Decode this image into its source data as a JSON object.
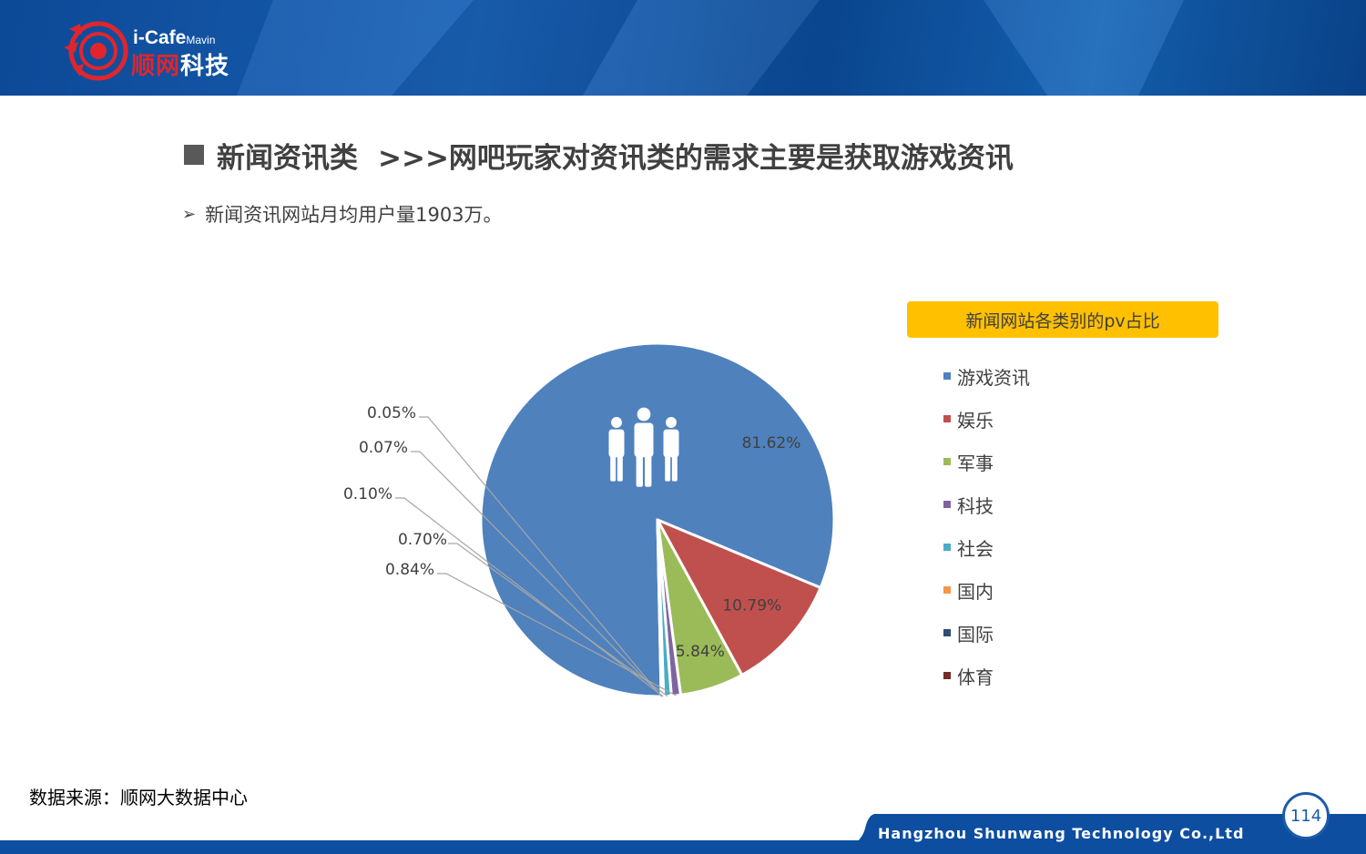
{
  "header": {
    "brand_en": "i-Cafe",
    "brand_sub": "Mavin",
    "brand_cn_red": "顺网",
    "brand_cn_white": "科技"
  },
  "slide": {
    "title_prefix": "新闻资讯类",
    "title_main": ">>>网吧玩家对资讯类的需求主要是获取游戏资讯",
    "bullet_arrow": "➢",
    "bullet": "新闻资讯网站月均用户量1903万。",
    "source": "数据来源：顺网大数据中心",
    "page_number": "114"
  },
  "footer": {
    "company": "Hangzhou Shunwang Technology Co.,Ltd"
  },
  "colors": {
    "header_blue": "#0d4ea0",
    "legend_title_bg": "#ffc000",
    "text_gray": "#404040",
    "logo_red": "#e0262c"
  },
  "chart_data": {
    "type": "pie",
    "title": "新闻网站各类别的pv占比",
    "legend_position": "right",
    "center_icon": "people-group-icon",
    "categories": [
      "游戏资讯",
      "娱乐",
      "军事",
      "科技",
      "社会",
      "国内",
      "国际",
      "体育"
    ],
    "values": [
      81.62,
      10.79,
      5.84,
      0.84,
      0.7,
      0.1,
      0.07,
      0.05
    ],
    "labels": [
      "81.62%",
      "10.79%",
      "5.84%",
      "0.84%",
      "0.70%",
      "0.10%",
      "0.07%",
      "0.05%"
    ],
    "colors": [
      "#4f81bd",
      "#c0504d",
      "#9bbb59",
      "#8064a2",
      "#4bacc6",
      "#f79646",
      "#2c4d75",
      "#772c2a"
    ]
  }
}
